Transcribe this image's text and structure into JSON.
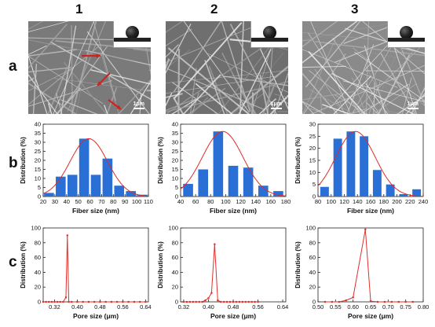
{
  "columns": [
    "1",
    "2",
    "3"
  ],
  "rows": [
    "a",
    "b",
    "c"
  ],
  "sem_panels": [
    {
      "scale_label": "1μm",
      "arrows": 3
    },
    {
      "scale_label": "1μm",
      "arrows": 0
    },
    {
      "scale_label": "1μm",
      "arrows": 0
    }
  ],
  "colors": {
    "bar": "#2a6fd6",
    "fit": "#e02a2a",
    "pore": "#e0302a",
    "arrow": "#d42020"
  },
  "chart_data": [
    {
      "type": "bar",
      "row": "b",
      "column": "1",
      "xlabel": "Fiber size (nm)",
      "ylabel": "Distribution (%)",
      "xlim": [
        20,
        110
      ],
      "ylim": [
        0,
        40
      ],
      "xticks": [
        20,
        30,
        40,
        50,
        60,
        70,
        80,
        90,
        100,
        110
      ],
      "yticks": [
        0,
        5,
        10,
        15,
        20,
        25,
        30,
        35,
        40
      ],
      "bar_width": 9,
      "x": [
        25,
        35,
        45,
        55,
        65,
        75,
        85,
        95,
        105
      ],
      "values": [
        2,
        11,
        12,
        32,
        12,
        21,
        6,
        3,
        1
      ],
      "fit": {
        "type": "gaussian",
        "mean": 59,
        "sd": 16,
        "peak": 32
      }
    },
    {
      "type": "bar",
      "row": "b",
      "column": "2",
      "xlabel": "Fiber size (nm)",
      "ylabel": "Distribution (%)",
      "xlim": [
        40,
        180
      ],
      "ylim": [
        0,
        40
      ],
      "xticks": [
        40,
        60,
        80,
        100,
        120,
        140,
        160,
        180
      ],
      "yticks": [
        0,
        5,
        10,
        15,
        20,
        25,
        30,
        35,
        40
      ],
      "bar_width": 14,
      "x": [
        50,
        70,
        90,
        110,
        130,
        150,
        170
      ],
      "values": [
        7,
        15,
        36,
        17,
        16,
        6,
        3
      ],
      "fit": {
        "type": "gaussian",
        "mean": 96,
        "sd": 27,
        "peak": 36
      }
    },
    {
      "type": "bar",
      "row": "b",
      "column": "3",
      "xlabel": "Fiber size (nm)",
      "ylabel": "Distribution (%)",
      "xlim": [
        80,
        240
      ],
      "ylim": [
        0,
        30
      ],
      "xticks": [
        80,
        100,
        120,
        140,
        160,
        180,
        200,
        220,
        240
      ],
      "yticks": [
        0,
        5,
        10,
        15,
        20,
        25,
        30
      ],
      "bar_width": 14,
      "x": [
        90,
        110,
        130,
        150,
        170,
        190,
        210,
        230
      ],
      "values": [
        4,
        24,
        27,
        25,
        11,
        5,
        1,
        3
      ],
      "fit": {
        "type": "gaussian",
        "mean": 137,
        "sd": 30,
        "peak": 27
      }
    },
    {
      "type": "line",
      "row": "c",
      "column": "1",
      "xlabel": "Pore size (μm)",
      "ylabel": "Distribution (%)",
      "xlim": [
        0.28,
        0.65
      ],
      "ylim": [
        0,
        100
      ],
      "xticks": [
        0.32,
        0.4,
        0.48,
        0.56,
        0.64
      ],
      "xtick_labels": [
        "0.32",
        "0.40",
        "0.48",
        "0.56",
        "0.64"
      ],
      "yticks": [
        0,
        20,
        40,
        60,
        80,
        100
      ],
      "x": [
        0.28,
        0.29,
        0.3,
        0.31,
        0.32,
        0.33,
        0.34,
        0.35,
        0.36,
        0.365,
        0.37,
        0.38,
        0.4,
        0.42,
        0.44,
        0.46,
        0.48,
        0.5,
        0.52,
        0.54,
        0.56,
        0.58,
        0.6,
        0.62,
        0.64
      ],
      "y": [
        0,
        0,
        0,
        0,
        0,
        0,
        0,
        0,
        6,
        90,
        0,
        0,
        0,
        0,
        0,
        0,
        0,
        0,
        0,
        0,
        0,
        0,
        0,
        0,
        0
      ]
    },
    {
      "type": "line",
      "row": "c",
      "column": "2",
      "xlabel": "Pore size (μm)",
      "ylabel": "Distribution (%)",
      "xlim": [
        0.31,
        0.65
      ],
      "ylim": [
        0,
        100
      ],
      "xticks": [
        0.32,
        0.4,
        0.48,
        0.56,
        0.64
      ],
      "xtick_labels": [
        "0.32",
        "0.40",
        "0.48",
        "0.56",
        "0.64"
      ],
      "yticks": [
        0,
        20,
        40,
        60,
        80,
        100
      ],
      "x": [
        0.32,
        0.33,
        0.34,
        0.35,
        0.36,
        0.37,
        0.38,
        0.39,
        0.4,
        0.41,
        0.42,
        0.43,
        0.44,
        0.45,
        0.46,
        0.47,
        0.48,
        0.49,
        0.5,
        0.51,
        0.52,
        0.53,
        0.54,
        0.55,
        0.56
      ],
      "y": [
        0,
        0,
        0,
        0,
        0,
        0,
        0,
        2,
        5,
        12,
        78,
        2,
        0,
        0,
        0,
        0,
        0,
        0,
        0,
        0,
        0,
        0,
        0,
        0,
        0
      ]
    },
    {
      "type": "line",
      "row": "c",
      "column": "3",
      "xlabel": "Pore size (μm)",
      "ylabel": "Distribution (%)",
      "xlim": [
        0.5,
        0.8
      ],
      "ylim": [
        0,
        100
      ],
      "xticks": [
        0.5,
        0.55,
        0.6,
        0.65,
        0.7,
        0.75,
        0.8
      ],
      "xtick_labels": [
        "0.50",
        "0.55",
        "0.60",
        "0.65",
        "0.70",
        "0.75",
        "0.80"
      ],
      "yticks": [
        0,
        20,
        40,
        60,
        80,
        100
      ],
      "x": [
        0.52,
        0.54,
        0.56,
        0.58,
        0.6,
        0.635,
        0.65,
        0.67,
        0.69,
        0.71,
        0.73,
        0.75,
        0.77
      ],
      "y": [
        0,
        0,
        0,
        2,
        6,
        98,
        1,
        0,
        0,
        0,
        0,
        0,
        0
      ]
    }
  ]
}
